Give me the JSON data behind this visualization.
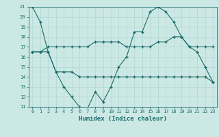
{
  "title": "",
  "xlabel": "Humidex (Indice chaleur)",
  "ylabel": "",
  "bg_color": "#cce8e4",
  "grid_color": "#b0d8d4",
  "line_color": "#1a6b6b",
  "xlim": [
    -0.5,
    23.5
  ],
  "ylim": [
    11,
    21
  ],
  "xticks": [
    0,
    1,
    2,
    3,
    4,
    5,
    6,
    7,
    8,
    9,
    10,
    11,
    12,
    13,
    14,
    15,
    16,
    17,
    18,
    19,
    20,
    21,
    22,
    23
  ],
  "yticks": [
    11,
    12,
    13,
    14,
    15,
    16,
    17,
    18,
    19,
    20,
    21
  ],
  "line1": [
    21.0,
    19.5,
    16.5,
    14.5,
    13.0,
    12.0,
    11.0,
    10.8,
    12.5,
    11.5,
    13.0,
    15.0,
    16.0,
    18.5,
    18.5,
    20.5,
    21.0,
    20.5,
    19.5,
    18.0,
    17.0,
    16.5,
    15.0,
    13.5
  ],
  "line2": [
    16.5,
    16.5,
    16.5,
    14.5,
    14.5,
    14.5,
    14.0,
    14.0,
    14.0,
    14.0,
    14.0,
    14.0,
    14.0,
    14.0,
    14.0,
    14.0,
    14.0,
    14.0,
    14.0,
    14.0,
    14.0,
    14.0,
    14.0,
    13.5
  ],
  "line3": [
    16.5,
    16.5,
    17.0,
    17.0,
    17.0,
    17.0,
    17.0,
    17.0,
    17.5,
    17.5,
    17.5,
    17.5,
    17.0,
    17.0,
    17.0,
    17.0,
    17.5,
    17.5,
    18.0,
    18.0,
    17.0,
    17.0,
    17.0,
    17.0
  ],
  "tick_fontsize": 5.0,
  "xlabel_fontsize": 6.5
}
